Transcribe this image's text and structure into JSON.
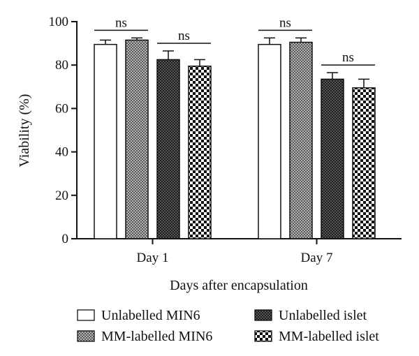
{
  "chart_data": {
    "type": "bar",
    "xlabel": "Days after encapsulation",
    "ylabel": "Viability (%)",
    "ylim": [
      0,
      100
    ],
    "yticks": [
      0,
      20,
      40,
      60,
      80,
      100
    ],
    "categories": [
      "Day 1",
      "Day 7"
    ],
    "series": [
      {
        "name": "Unlabelled MIN6",
        "values": [
          89.5,
          89.5
        ],
        "errors": [
          2,
          3
        ],
        "fill": "white"
      },
      {
        "name": "MM-labelled MIN6",
        "values": [
          91.5,
          90.5
        ],
        "errors": [
          1,
          2
        ],
        "fill": "fine-crosshatch"
      },
      {
        "name": "Unlabelled islet",
        "values": [
          82.5,
          73.5
        ],
        "errors": [
          4,
          3
        ],
        "fill": "dark-crosshatch"
      },
      {
        "name": "MM-labelled islet",
        "values": [
          79.5,
          69.5
        ],
        "errors": [
          3,
          4
        ],
        "fill": "checkerboard"
      }
    ],
    "annotations": [
      {
        "text": "ns",
        "category": "Day 1",
        "between": [
          0,
          1
        ]
      },
      {
        "text": "ns",
        "category": "Day 1",
        "between": [
          2,
          3
        ]
      },
      {
        "text": "ns",
        "category": "Day 7",
        "between": [
          0,
          1
        ]
      },
      {
        "text": "ns",
        "category": "Day 7",
        "between": [
          2,
          3
        ]
      }
    ],
    "legend_position": "bottom",
    "grid": false
  }
}
